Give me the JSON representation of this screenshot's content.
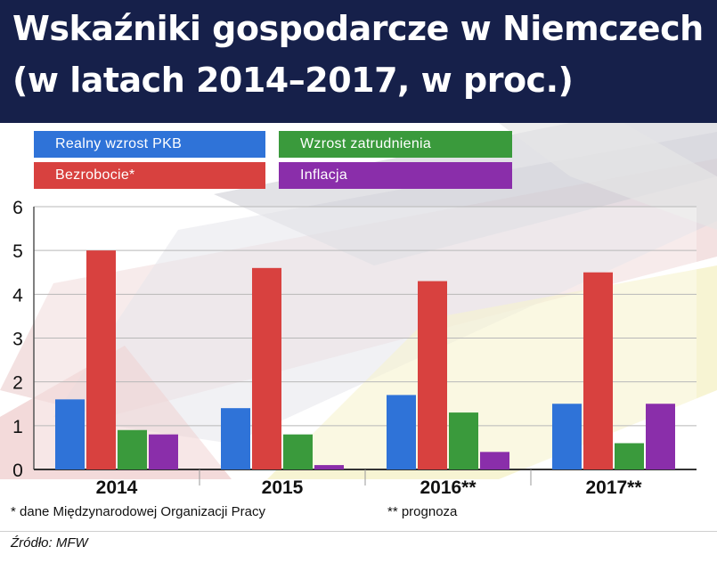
{
  "title_line1": "Wskaźniki gospodarcze w Niemczech",
  "title_line2": "(w latach 2014–2017, w proc.)",
  "legend": [
    {
      "label": "Realny wzrost PKB",
      "color": "#2f73d8"
    },
    {
      "label": "Wzrost zatrudnienia",
      "color": "#3a9a3c"
    },
    {
      "label": "Bezrobocie*",
      "color": "#d8413f"
    },
    {
      "label": "Inflacja",
      "color": "#8a2eaa"
    }
  ],
  "chart_data": {
    "type": "bar",
    "categories": [
      "2014",
      "2015",
      "2016**",
      "2017**"
    ],
    "series": [
      {
        "name": "Realny wzrost PKB",
        "color": "#2f73d8",
        "values": [
          1.6,
          1.4,
          1.7,
          1.5
        ]
      },
      {
        "name": "Bezrobocie*",
        "color": "#d8413f",
        "values": [
          5.0,
          4.6,
          4.3,
          4.5
        ]
      },
      {
        "name": "Wzrost zatrudnienia",
        "color": "#3a9a3c",
        "values": [
          0.9,
          0.8,
          1.3,
          0.6
        ]
      },
      {
        "name": "Inflacja",
        "color": "#8a2eaa",
        "values": [
          0.8,
          0.1,
          0.4,
          1.5
        ]
      }
    ],
    "ylim": [
      0,
      6
    ],
    "yticks": [
      "0",
      "1",
      "2",
      "3",
      "4",
      "5",
      "6"
    ],
    "grid": true,
    "legend_position": "top"
  },
  "footnotes": {
    "note1": "* dane Międzynarodowej Organizacji Pracy",
    "note2": "** prognoza"
  },
  "source": "Źródło: MFW"
}
